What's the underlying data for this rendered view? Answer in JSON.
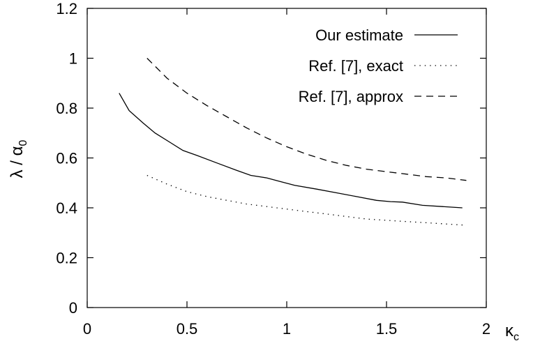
{
  "chart_data": {
    "type": "line",
    "title": "",
    "xlabel": "κ",
    "xlabel_sub": "c",
    "ylabel": "λ / α",
    "ylabel_sub": "0",
    "xlim": [
      0,
      2
    ],
    "ylim": [
      0,
      1.2
    ],
    "xticks": [
      "0",
      "0.5",
      "1",
      "1.5",
      "2"
    ],
    "xtick_values": [
      0,
      0.5,
      1,
      1.5,
      2
    ],
    "yticks": [
      "0",
      "0.2",
      "0.4",
      "0.6",
      "0.8",
      "1",
      "1.2"
    ],
    "ytick_values": [
      0,
      0.2,
      0.4,
      0.6,
      0.8,
      1,
      1.2
    ],
    "grid": false,
    "legend_position": "top-right",
    "series": [
      {
        "name": "Our estimate",
        "style": "solid",
        "x": [
          0.16,
          0.21,
          0.28,
          0.34,
          0.42,
          0.48,
          0.55,
          0.65,
          0.75,
          0.82,
          0.9,
          0.97,
          1.04,
          1.15,
          1.25,
          1.35,
          1.45,
          1.52,
          1.58,
          1.68,
          1.78,
          1.88
        ],
        "y": [
          0.86,
          0.79,
          0.74,
          0.7,
          0.66,
          0.63,
          0.61,
          0.58,
          0.55,
          0.53,
          0.52,
          0.505,
          0.49,
          0.475,
          0.46,
          0.445,
          0.43,
          0.425,
          0.423,
          0.41,
          0.405,
          0.4
        ]
      },
      {
        "name": "Ref. [7], exact",
        "style": "dotted",
        "x": [
          0.3,
          0.4,
          0.5,
          0.6,
          0.7,
          0.8,
          0.9,
          1.0,
          1.1,
          1.2,
          1.3,
          1.4,
          1.5,
          1.6,
          1.7,
          1.8,
          1.9
        ],
        "y": [
          0.53,
          0.495,
          0.465,
          0.445,
          0.43,
          0.415,
          0.405,
          0.395,
          0.385,
          0.375,
          0.365,
          0.355,
          0.35,
          0.345,
          0.34,
          0.335,
          0.33
        ]
      },
      {
        "name": "Ref. [7], approx",
        "style": "dashed",
        "x": [
          0.3,
          0.4,
          0.5,
          0.6,
          0.7,
          0.8,
          0.9,
          1.0,
          1.1,
          1.2,
          1.3,
          1.4,
          1.5,
          1.6,
          1.7,
          1.8,
          1.9
        ],
        "y": [
          1.0,
          0.92,
          0.86,
          0.81,
          0.765,
          0.72,
          0.68,
          0.645,
          0.615,
          0.59,
          0.57,
          0.555,
          0.545,
          0.535,
          0.525,
          0.52,
          0.51
        ]
      }
    ]
  }
}
